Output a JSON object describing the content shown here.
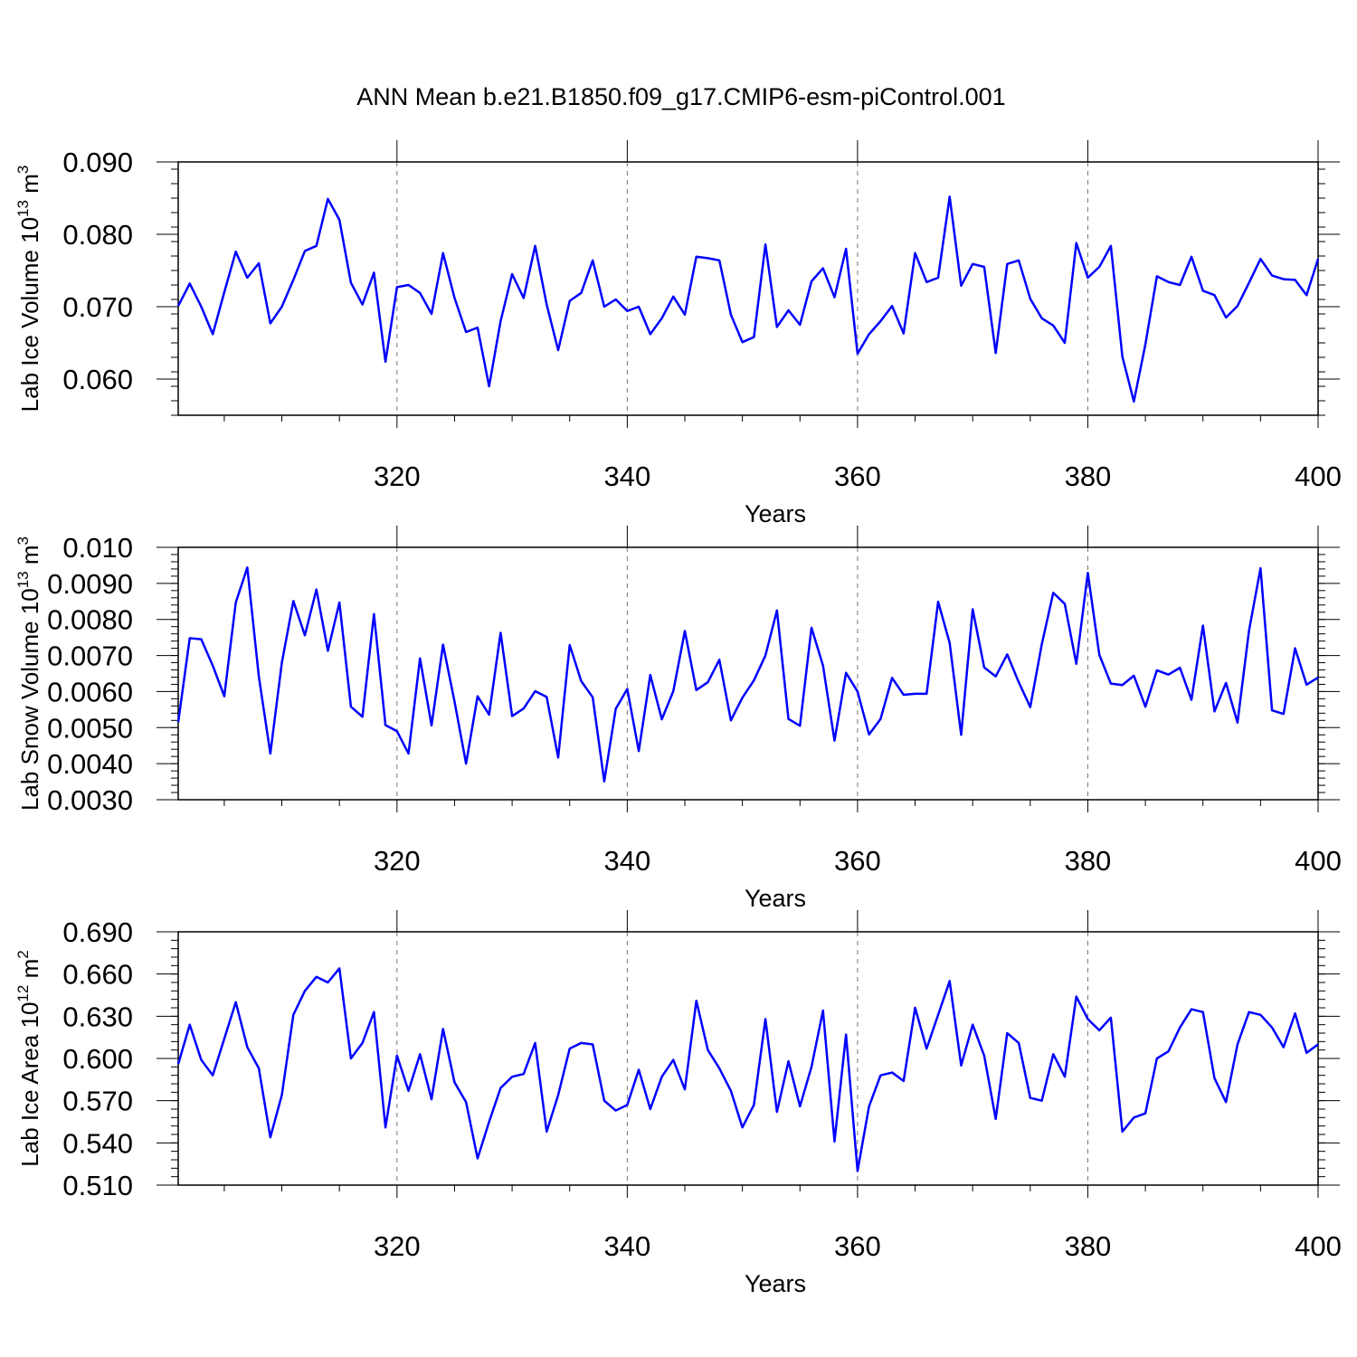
{
  "figure_title": "ANN Mean b.e21.B1850.f09_g17.CMIP6-esm-piControl.001",
  "colors": {
    "series": "#0000ff",
    "axis": "#000000",
    "grid": "#777777"
  },
  "chart_data": [
    {
      "type": "line",
      "ylabel_main": "Lab Ice Volume 10",
      "ylabel_exp": "13",
      "ylabel_unit": " m",
      "ylabel_unit_exp": "3",
      "xlabel": "Years",
      "xlim": [
        301,
        400
      ],
      "ylim": [
        0.055,
        0.09
      ],
      "yticks": [
        0.06,
        0.07,
        0.08,
        0.09
      ],
      "ytick_labels": [
        "0.060",
        "0.070",
        "0.080",
        "0.090"
      ],
      "yminor_step": 0.002,
      "xticks": [
        320,
        340,
        360,
        380,
        400
      ],
      "xtick_labels": [
        "320",
        "340",
        "360",
        "380",
        "400"
      ],
      "grid_x": [
        320,
        340,
        360,
        380
      ],
      "series": [
        {
          "values": [
            0.0701,
            0.0732,
            0.07,
            0.0662,
            0.072,
            0.0776,
            0.074,
            0.076,
            0.0677,
            0.07,
            0.0737,
            0.0777,
            0.0784,
            0.0849,
            0.082,
            0.0733,
            0.0703,
            0.0747,
            0.0624,
            0.0727,
            0.073,
            0.0719,
            0.069,
            0.0774,
            0.0712,
            0.0665,
            0.0671,
            0.059,
            0.068,
            0.0745,
            0.0712,
            0.0784,
            0.0703,
            0.064,
            0.0708,
            0.0719,
            0.0764,
            0.07,
            0.071,
            0.0694,
            0.07,
            0.0662,
            0.0684,
            0.0714,
            0.0689,
            0.0769,
            0.0767,
            0.0764,
            0.0689,
            0.0651,
            0.0658,
            0.0786,
            0.0672,
            0.0695,
            0.0675,
            0.0735,
            0.0753,
            0.0713,
            0.078,
            0.0635,
            0.0662,
            0.068,
            0.0701,
            0.0663,
            0.0774,
            0.0734,
            0.074,
            0.0852,
            0.0729,
            0.0759,
            0.0755,
            0.0636,
            0.0759,
            0.0764,
            0.0711,
            0.0684,
            0.0674,
            0.065,
            0.0788,
            0.074,
            0.0755,
            0.0784,
            0.0631,
            0.0569,
            0.0648,
            0.0742,
            0.0734,
            0.073,
            0.0769,
            0.0722,
            0.0716,
            0.0685,
            0.0701,
            0.0733,
            0.0766,
            0.0743,
            0.0738,
            0.0737,
            0.0716,
            0.0766
          ]
        }
      ]
    },
    {
      "type": "line",
      "ylabel_main": "Lab Snow Volume 10",
      "ylabel_exp": "13",
      "ylabel_unit": " m",
      "ylabel_unit_exp": "3",
      "xlabel": "Years",
      "xlim": [
        301,
        400
      ],
      "ylim": [
        0.003,
        0.01
      ],
      "yticks": [
        0.003,
        0.004,
        0.005,
        0.006,
        0.007,
        0.008,
        0.009,
        0.01
      ],
      "ytick_labels": [
        "0.0030",
        "0.0040",
        "0.0050",
        "0.0060",
        "0.0070",
        "0.0080",
        "0.0090",
        "0.010"
      ],
      "yminor_step": 0.0002,
      "xticks": [
        320,
        340,
        360,
        380,
        400
      ],
      "xtick_labels": [
        "320",
        "340",
        "360",
        "380",
        "400"
      ],
      "grid_x": [
        320,
        340,
        360,
        380
      ],
      "series": [
        {
          "values": [
            0.00515,
            0.00748,
            0.00745,
            0.00672,
            0.00587,
            0.00847,
            0.00944,
            0.00642,
            0.00428,
            0.0068,
            0.00851,
            0.00756,
            0.00883,
            0.00713,
            0.00847,
            0.00558,
            0.0053,
            0.00815,
            0.00507,
            0.0049,
            0.00428,
            0.00692,
            0.00506,
            0.0073,
            0.00572,
            0.004,
            0.00587,
            0.00536,
            0.00763,
            0.00532,
            0.00553,
            0.00601,
            0.00585,
            0.00417,
            0.00729,
            0.00629,
            0.00584,
            0.00351,
            0.00552,
            0.00607,
            0.00435,
            0.00646,
            0.00523,
            0.00601,
            0.00768,
            0.00604,
            0.00626,
            0.00688,
            0.0052,
            0.00583,
            0.00631,
            0.007,
            0.00825,
            0.00524,
            0.00505,
            0.00777,
            0.00672,
            0.00464,
            0.00652,
            0.006,
            0.00481,
            0.00524,
            0.00638,
            0.00591,
            0.00594,
            0.00594,
            0.00849,
            0.00735,
            0.0048,
            0.00828,
            0.00667,
            0.00642,
            0.00703,
            0.00626,
            0.00557,
            0.00731,
            0.00874,
            0.00843,
            0.00677,
            0.00929,
            0.00702,
            0.00622,
            0.00618,
            0.00644,
            0.00558,
            0.00659,
            0.00647,
            0.00666,
            0.00577,
            0.00783,
            0.00545,
            0.00624,
            0.00514,
            0.00769,
            0.00942,
            0.00548,
            0.00538,
            0.0072,
            0.00619,
            0.00639
          ]
        }
      ]
    },
    {
      "type": "line",
      "ylabel_main": "Lab Ice Area 10",
      "ylabel_exp": "12",
      "ylabel_unit": " m",
      "ylabel_unit_exp": "2",
      "xlabel": "Years",
      "xlim": [
        301,
        400
      ],
      "ylim": [
        0.51,
        0.69
      ],
      "yticks": [
        0.51,
        0.54,
        0.57,
        0.6,
        0.63,
        0.66,
        0.69
      ],
      "ytick_labels": [
        "0.510",
        "0.540",
        "0.570",
        "0.600",
        "0.630",
        "0.660",
        "0.690"
      ],
      "yminor_step": 0.006,
      "xticks": [
        320,
        340,
        360,
        380,
        400
      ],
      "xtick_labels": [
        "320",
        "340",
        "360",
        "380",
        "400"
      ],
      "grid_x": [
        320,
        340,
        360,
        380
      ],
      "series": [
        {
          "values": [
            0.596,
            0.624,
            0.599,
            0.588,
            0.614,
            0.64,
            0.608,
            0.593,
            0.544,
            0.574,
            0.631,
            0.648,
            0.658,
            0.654,
            0.664,
            0.6,
            0.611,
            0.633,
            0.551,
            0.602,
            0.577,
            0.603,
            0.571,
            0.621,
            0.583,
            0.569,
            0.529,
            0.555,
            0.579,
            0.587,
            0.589,
            0.611,
            0.548,
            0.574,
            0.607,
            0.611,
            0.61,
            0.57,
            0.563,
            0.567,
            0.592,
            0.564,
            0.587,
            0.599,
            0.578,
            0.641,
            0.606,
            0.593,
            0.577,
            0.551,
            0.567,
            0.628,
            0.562,
            0.598,
            0.566,
            0.594,
            0.634,
            0.541,
            0.617,
            0.52,
            0.566,
            0.588,
            0.59,
            0.584,
            0.636,
            0.607,
            0.631,
            0.655,
            0.595,
            0.624,
            0.602,
            0.557,
            0.618,
            0.611,
            0.572,
            0.57,
            0.603,
            0.587,
            0.644,
            0.628,
            0.62,
            0.629,
            0.548,
            0.558,
            0.561,
            0.6,
            0.605,
            0.622,
            0.635,
            0.633,
            0.586,
            0.569,
            0.61,
            0.633,
            0.631,
            0.622,
            0.608,
            0.632,
            0.604,
            0.61
          ]
        }
      ]
    }
  ]
}
